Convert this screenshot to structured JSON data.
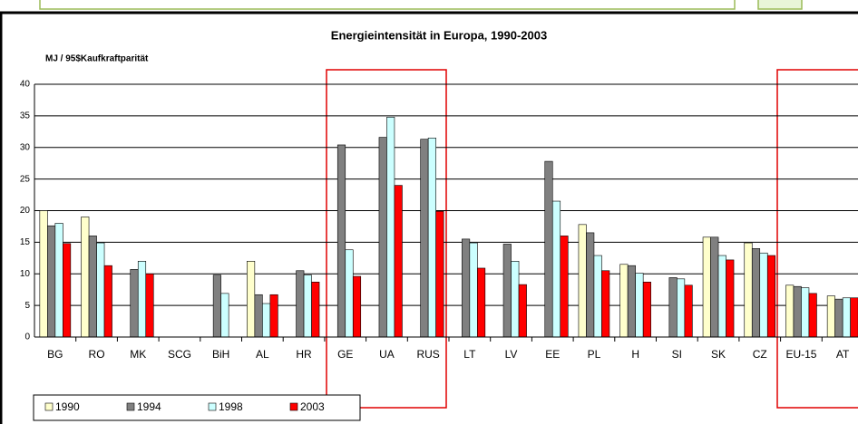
{
  "chart_data": {
    "type": "bar",
    "title": "Energieintensität in Europa, 1990-2003",
    "y_label": "MJ / 95$Kaufkraftparität",
    "categories": [
      "BG",
      "RO",
      "MK",
      "SCG",
      "BiH",
      "AL",
      "HR",
      "GE",
      "UA",
      "RUS",
      "LT",
      "LV",
      "EE",
      "PL",
      "H",
      "SI",
      "SK",
      "CZ",
      "EU-15",
      "AT"
    ],
    "series": [
      {
        "name": "1990",
        "color": "#ffffcc",
        "values": [
          20,
          19,
          null,
          null,
          null,
          12,
          null,
          null,
          null,
          null,
          null,
          null,
          null,
          17.8,
          11.5,
          null,
          15.8,
          14.9,
          8.2,
          6.5
        ]
      },
      {
        "name": "1994",
        "color": "#808080",
        "values": [
          17.6,
          16,
          10.7,
          null,
          9.8,
          6.7,
          10.5,
          30.4,
          31.6,
          31.3,
          15.5,
          14.7,
          27.8,
          16.5,
          11.3,
          9.4,
          15.8,
          14,
          8,
          6
        ]
      },
      {
        "name": "1998",
        "color": "#ccffff",
        "values": [
          18,
          14.9,
          12,
          null,
          6.9,
          5.3,
          9.8,
          13.8,
          34.8,
          31.5,
          14.9,
          12,
          21.5,
          12.9,
          10.1,
          9.2,
          12.9,
          13.3,
          7.8,
          6.2
        ]
      },
      {
        "name": "2003",
        "color": "#ff0000",
        "values": [
          14.8,
          11.3,
          10,
          null,
          null,
          6.7,
          8.7,
          9.6,
          24,
          19.9,
          10.9,
          8.3,
          16,
          10.5,
          8.7,
          8.2,
          12.2,
          12.9,
          6.9,
          6.2
        ]
      }
    ],
    "ylim": [
      0,
      40
    ],
    "yticks": [
      0,
      5,
      10,
      15,
      20,
      25,
      30,
      35,
      40
    ],
    "grid": true
  }
}
